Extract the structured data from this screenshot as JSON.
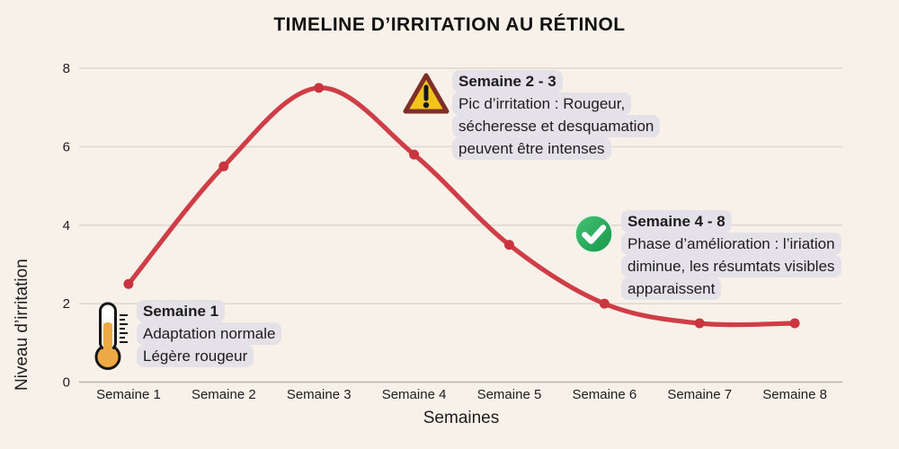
{
  "title": "TIMELINE D’IRRITATION AU RÉTINOL",
  "chart_data": {
    "type": "line",
    "categories": [
      "Semaine 1",
      "Semaine 2",
      "Semaine 3",
      "Semaine 4",
      "Semaine 5",
      "Semaine 6",
      "Semaine 7",
      "Semaine 8"
    ],
    "values": [
      2.5,
      5.5,
      7.5,
      5.8,
      3.5,
      2.0,
      1.5,
      1.5
    ],
    "title": "TIMELINE D’IRRITATION AU RÉTINOL",
    "xlabel": "Semaines",
    "ylabel": "Niveau d’irritation",
    "ylim": [
      0,
      8
    ],
    "yticks": [
      0,
      2,
      4,
      6,
      8
    ],
    "grid": true,
    "legend": "none"
  },
  "annotations": [
    {
      "icon": "thermometer-icon",
      "header": "Semaine 1",
      "lines": [
        "Adaptation normale",
        "Légère rougeur"
      ]
    },
    {
      "icon": "warning-icon",
      "header": "Semaine 2 - 3",
      "lines": [
        "Pic d’irritation : Rougeur,",
        "sécheresse et desquamation",
        "peuvent être intenses"
      ]
    },
    {
      "icon": "check-icon",
      "header": "Semaine 4 - 8",
      "lines": [
        "Phase d’amélioration : l’iriation",
        "diminue, les résumtats visibles",
        "apparaissent"
      ]
    }
  ],
  "colors": {
    "bg": "#f8f1e9",
    "hl": "#e4e1e8",
    "text": "#1d1d1d",
    "line": "#cf3e47",
    "marker": "#c8353f",
    "grid": "#ddd8d0",
    "axis": "#b7b2ab",
    "warning-fill": "#f2c21d",
    "warning-border": "#7d2f28",
    "check-green": "#17a050",
    "thermo-orange": "#eca944"
  }
}
